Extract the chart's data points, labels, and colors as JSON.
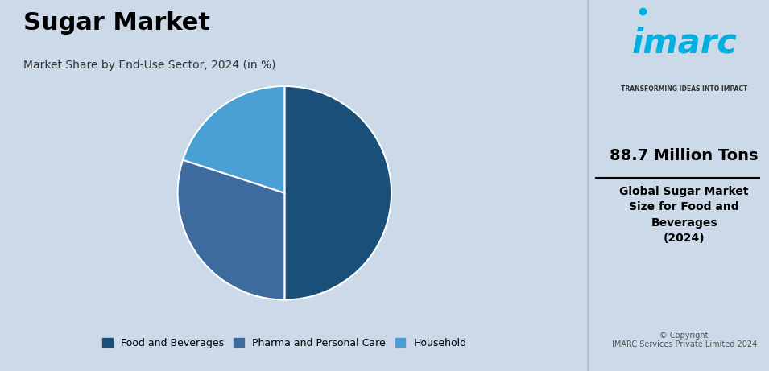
{
  "title": "Sugar Market",
  "subtitle": "Market Share by End-Use Sector, 2024 (in %)",
  "pie_labels": [
    "Food and Beverages",
    "Pharma and Personal Care",
    "Household"
  ],
  "pie_values": [
    50,
    30,
    20
  ],
  "pie_colors": [
    "#1a4f7a",
    "#3d6b9e",
    "#4a9fd4"
  ],
  "pie_startangle": 90,
  "background_color": "#ccd9e8",
  "right_panel_bg": "#eef2f6",
  "legend_labels": [
    "Food and Beverages",
    "Pharma and Personal Care",
    "Household"
  ],
  "legend_colors": [
    "#1a4f7a",
    "#3d6b9e",
    "#4a9fd4"
  ],
  "right_stat": "88.7 Million Tons",
  "right_desc": "Global Sugar Market\nSize for Food and\nBeverages\n(2024)",
  "imarc_text": "imarc",
  "imarc_subtitle": "TRANSFORMING IDEAS INTO IMPACT",
  "copyright_text": "© Copyright\nIMARC Services Private Limited 2024"
}
